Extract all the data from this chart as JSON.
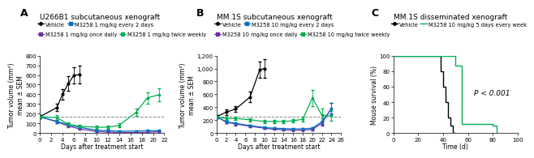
{
  "panel_A": {
    "title": "U266B1 subcutaneous xenograft",
    "xlabel": "Days after treatment start",
    "ylabel": "Tumor volume (mm³)\nmean ± SEM",
    "xlim": [
      0,
      22
    ],
    "ylim": [
      0,
      800
    ],
    "yticks": [
      0,
      100,
      200,
      300,
      400,
      500,
      600,
      700,
      800
    ],
    "xticks": [
      0,
      2,
      4,
      6,
      8,
      10,
      12,
      14,
      16,
      18,
      20,
      22
    ],
    "dashed_y": 170,
    "series": {
      "vehicle": {
        "x": [
          0,
          3,
          4,
          5,
          6,
          7
        ],
        "y": [
          170,
          265,
          400,
          510,
          595,
          605
        ],
        "yerr": [
          15,
          40,
          55,
          75,
          85,
          95
        ],
        "color": "#000000",
        "label": "Vehicle",
        "marker": "o",
        "linestyle": "-"
      },
      "once_daily": {
        "x": [
          0,
          3,
          5,
          7,
          10,
          12,
          14,
          17,
          19,
          21
        ],
        "y": [
          170,
          118,
          75,
          45,
          18,
          12,
          8,
          7,
          10,
          15
        ],
        "yerr": [
          15,
          18,
          12,
          12,
          8,
          5,
          4,
          4,
          6,
          8
        ],
        "color": "#7030a0",
        "label": "M3258 1 mg/kg once daily",
        "marker": "s",
        "linestyle": "-"
      },
      "every_2_days": {
        "x": [
          0,
          3,
          5,
          7,
          10,
          12,
          14,
          17,
          19,
          21
        ],
        "y": [
          170,
          122,
          88,
          62,
          32,
          26,
          22,
          22,
          26,
          26
        ],
        "yerr": [
          15,
          18,
          14,
          13,
          9,
          7,
          7,
          7,
          9,
          10
        ],
        "color": "#0070c0",
        "label": "M3258 1 mg/kg every 2 days",
        "marker": "s",
        "linestyle": "-"
      },
      "twice_weekly": {
        "x": [
          0,
          3,
          5,
          7,
          10,
          12,
          14,
          17,
          19,
          21
        ],
        "y": [
          170,
          162,
          92,
          72,
          62,
          62,
          82,
          215,
          365,
          395
        ],
        "yerr": [
          15,
          22,
          18,
          18,
          14,
          14,
          18,
          38,
          58,
          68
        ],
        "color": "#00b050",
        "label": "M3258 1 mg/kg twice weekly",
        "marker": "s",
        "linestyle": "-"
      }
    }
  },
  "panel_B": {
    "title": "MM.1S subcutaneous xenograft",
    "xlabel": "Days after treatment start",
    "ylabel": "Tumor volume (mm³)\nmean ± SEM",
    "xlim": [
      0,
      26
    ],
    "ylim": [
      0,
      1200
    ],
    "yticks": [
      0,
      200,
      400,
      600,
      800,
      1000,
      1200
    ],
    "xticks": [
      0,
      2,
      4,
      6,
      8,
      10,
      12,
      14,
      16,
      18,
      20,
      22,
      24,
      26
    ],
    "dashed_y": 255,
    "series": {
      "vehicle": {
        "x": [
          0,
          2,
          4,
          7,
          9,
          10
        ],
        "y": [
          255,
          325,
          375,
          560,
          980,
          1000
        ],
        "yerr": [
          25,
          38,
          48,
          78,
          125,
          145
        ],
        "color": "#000000",
        "label": "Vehicle",
        "marker": "o",
        "linestyle": "-"
      },
      "once_daily": {
        "x": [
          0,
          2,
          4,
          7,
          10,
          12,
          14,
          16,
          18,
          20,
          22,
          24
        ],
        "y": [
          255,
          172,
          142,
          108,
          78,
          62,
          52,
          48,
          48,
          58,
          155,
          385
        ],
        "yerr": [
          28,
          22,
          18,
          18,
          14,
          11,
          11,
          9,
          9,
          14,
          38,
          78
        ],
        "color": "#7030a0",
        "label": "M3258 10 mg/kg once daily",
        "marker": "s",
        "linestyle": "-"
      },
      "every_2_days": {
        "x": [
          0,
          2,
          4,
          7,
          10,
          12,
          14,
          16,
          18,
          20,
          22,
          24
        ],
        "y": [
          255,
          178,
          152,
          118,
          88,
          78,
          72,
          68,
          68,
          78,
          178,
          378
        ],
        "yerr": [
          28,
          22,
          18,
          18,
          14,
          11,
          11,
          11,
          11,
          14,
          48,
          88
        ],
        "color": "#0070c0",
        "label": "M3258 10 mg/kg every 2 days",
        "marker": "s",
        "linestyle": "-"
      },
      "twice_weekly": {
        "x": [
          0,
          2,
          4,
          7,
          10,
          12,
          14,
          16,
          18,
          20,
          22,
          24
        ],
        "y": [
          255,
          228,
          228,
          208,
          182,
          182,
          182,
          192,
          218,
          545,
          278,
          268
        ],
        "yerr": [
          28,
          28,
          28,
          23,
          23,
          23,
          23,
          28,
          33,
          128,
          98,
          78
        ],
        "color": "#00b050",
        "label": "M3258 10 mg/kg twice weekly",
        "marker": "s",
        "linestyle": "-"
      }
    }
  },
  "panel_C": {
    "title": "MM.1S disseminated xenograft",
    "xlabel": "Time (d)",
    "ylabel": "Mouse survival (%)",
    "xlim": [
      0,
      100
    ],
    "ylim": [
      0,
      100
    ],
    "yticks": [
      0,
      20,
      40,
      60,
      80,
      100
    ],
    "xticks": [
      0,
      20,
      40,
      60,
      80,
      100
    ],
    "pvalue_text": "P < 0.001",
    "pvalue_x": 65,
    "pvalue_y": 52,
    "series": {
      "vehicle": {
        "x": [
          0,
          38,
          38,
          40,
          40,
          42,
          42,
          44,
          44,
          46,
          46,
          48,
          48,
          50,
          50
        ],
        "y": [
          100,
          100,
          80,
          80,
          60,
          60,
          40,
          40,
          20,
          20,
          10,
          10,
          0,
          0,
          0
        ],
        "color": "#000000",
        "label": "Vehicle",
        "linestyle": "-"
      },
      "m3258": {
        "x": [
          0,
          50,
          50,
          55,
          55,
          80,
          80,
          83,
          83
        ],
        "y": [
          100,
          100,
          87,
          87,
          12,
          12,
          10,
          10,
          0
        ],
        "color": "#00b050",
        "label": "M3258 10 mg/kg 5 days every week",
        "linestyle": "-"
      }
    }
  },
  "legend_A": {
    "row1": [
      {
        "label": "Vehicle",
        "color": "#000000",
        "marker": "o"
      },
      {
        "label": "M3258 1 mg/kg every 2 days",
        "color": "#0070c0",
        "marker": "s"
      }
    ],
    "row2": [
      {
        "label": "M3258 1 mg/kg once daily",
        "color": "#7030a0",
        "marker": "s"
      },
      {
        "label": "M3258 1 mg/kg twice weekly",
        "color": "#00b050",
        "marker": "s"
      }
    ]
  },
  "legend_B": {
    "row1": [
      {
        "label": "Vehicle",
        "color": "#000000",
        "marker": "o"
      },
      {
        "label": "M3258 10 mg/kg every 2 days",
        "color": "#0070c0",
        "marker": "s"
      }
    ],
    "row2": [
      {
        "label": "M3258 10 mg/kg once daily",
        "color": "#7030a0",
        "marker": "s"
      },
      {
        "label": "M3258 10 mg/kg twice weekly",
        "color": "#00b050",
        "marker": "s"
      }
    ]
  },
  "legend_C": {
    "row1": [
      {
        "label": "Vehicle",
        "color": "#000000"
      },
      {
        "label": "M3258 10 mg/kg 5 days every week",
        "color": "#00b050"
      }
    ]
  },
  "bg_color": "#ffffff",
  "label_fontsize": 9,
  "title_fontsize": 6.5,
  "tick_fontsize": 5,
  "axis_label_fontsize": 5.5,
  "legend_fontsize": 4.8
}
